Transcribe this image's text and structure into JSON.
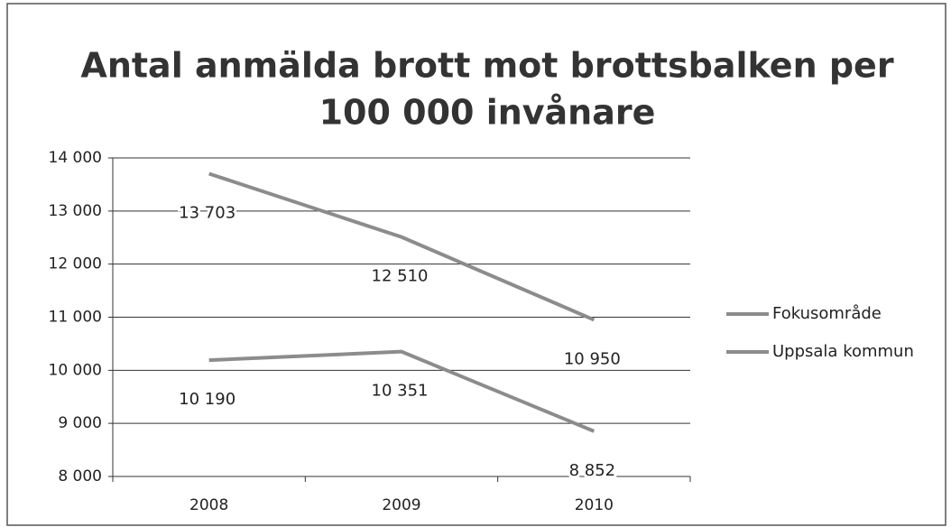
{
  "chart_data": {
    "type": "line",
    "title": [
      "Antal anmälda brott mot brottsbalken per",
      "100 000 invånare"
    ],
    "categories": [
      "2008",
      "2009",
      "2010"
    ],
    "series": [
      {
        "name": "Fokusområde",
        "color": "#8c8c8c",
        "values": [
          13703,
          12510,
          10950
        ],
        "value_labels": [
          "13 703",
          "12 510",
          "10 950"
        ]
      },
      {
        "name": "Uppsala kommun",
        "color": "#8c8c8c",
        "values": [
          10190,
          10351,
          8852
        ],
        "value_labels": [
          "10 190",
          "10 351",
          "8 852"
        ]
      }
    ],
    "ylim": [
      8000,
      14000
    ],
    "yticks": [
      {
        "value": 8000,
        "label": "8 000"
      },
      {
        "value": 9000,
        "label": "9 000"
      },
      {
        "value": 10000,
        "label": "10 000"
      },
      {
        "value": 11000,
        "label": "11 000"
      },
      {
        "value": 12000,
        "label": "12 000"
      },
      {
        "value": 13000,
        "label": "13 000"
      },
      {
        "value": 14000,
        "label": "14 000"
      }
    ],
    "grid": true,
    "legend": "right"
  }
}
